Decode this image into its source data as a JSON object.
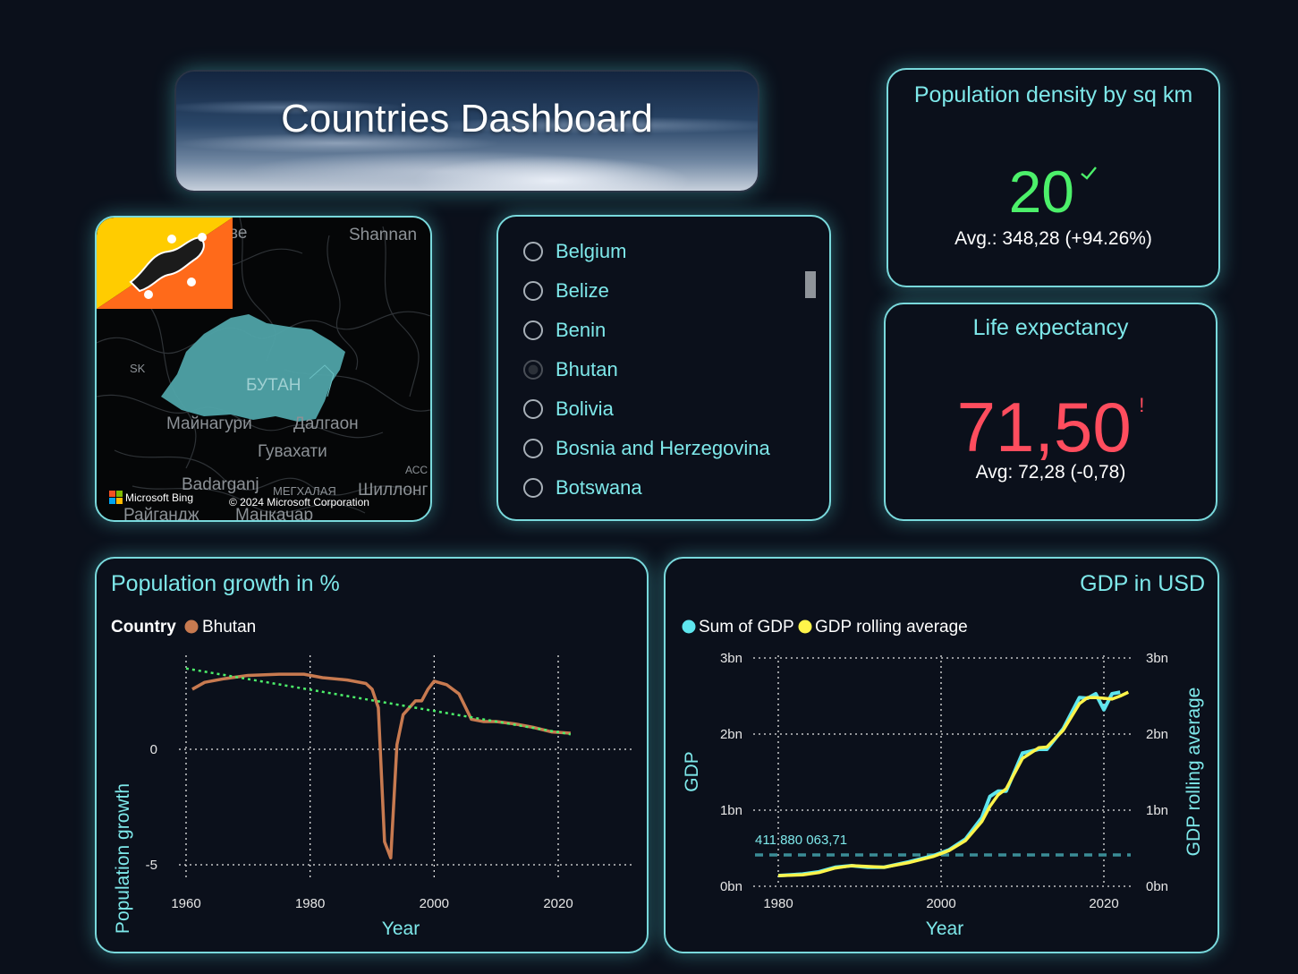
{
  "title": "Countries Dashboard",
  "map": {
    "labels": {
      "top_left": "ве",
      "top_right": "Shannan",
      "sk": "SK",
      "country": "БУТАН",
      "mainaguri": "Майнагури",
      "daltaon": "Далгаон",
      "guvahati": "Гувахати",
      "acc": "АСС",
      "badarganj": "Badarganj",
      "megxalaya": "МЕГХАЛАЯ",
      "shillong": "Шиллонг",
      "raiganj": "Райгандж",
      "mankachar": "Манкачар"
    },
    "bing": "Microsoft Bing",
    "copyright": "© 2024 Microsoft Corporation",
    "flag": "bhutan-flag",
    "colors": {
      "country_fill": "#4fa3a8",
      "flag_yellow": "#ffcc00",
      "flag_orange": "#ff6a1a"
    }
  },
  "slicer": {
    "items": [
      {
        "label": "Belgium",
        "selected": false
      },
      {
        "label": "Belize",
        "selected": false
      },
      {
        "label": "Benin",
        "selected": false
      },
      {
        "label": "Bhutan",
        "selected": true
      },
      {
        "label": "Bolivia",
        "selected": false
      },
      {
        "label": "Bosnia and Herzegovina",
        "selected": false
      },
      {
        "label": "Botswana",
        "selected": false
      }
    ]
  },
  "density": {
    "title": "Population density by sq km",
    "value": "20",
    "status_icon": "checkmark-icon",
    "avg": "Avg.: 348,28 (+94.26%)",
    "color": "#4cf06a"
  },
  "life": {
    "title": "Life expectancy",
    "value": "71,50",
    "status_icon": "!",
    "avg": "Avg: 72,28 (-0,78)",
    "color": "#ff4d5e"
  },
  "chart_data": [
    {
      "type": "line",
      "title": "Population growth in %",
      "legend_title": "Country",
      "xlabel": "Year",
      "ylabel": "Population growth",
      "x_ticks": [
        "1960",
        "1980",
        "2000",
        "2020"
      ],
      "y_ticks": [
        "0",
        "-5"
      ],
      "xlim": [
        1960,
        2022
      ],
      "ylim": [
        -5.5,
        3.5
      ],
      "grid": true,
      "series": [
        {
          "name": "Bhutan",
          "color": "#c87a50",
          "x": [
            1961,
            1963,
            1966,
            1970,
            1975,
            1979,
            1982,
            1986,
            1989,
            1990,
            1991,
            1992,
            1993,
            1994,
            1995,
            1997,
            1998,
            1999,
            2000,
            2002,
            2004,
            2006,
            2008,
            2010,
            2013,
            2016,
            2019,
            2022
          ],
          "y": [
            2.6,
            2.9,
            3.05,
            3.2,
            3.25,
            3.25,
            3.1,
            3.0,
            2.85,
            2.6,
            1.8,
            -4.0,
            -4.7,
            0.2,
            1.5,
            2.1,
            2.1,
            2.6,
            2.95,
            2.8,
            2.4,
            1.3,
            1.2,
            1.2,
            1.1,
            0.95,
            0.75,
            0.7
          ]
        },
        {
          "name": "trend",
          "type": "trendline",
          "color": "#4cf06a",
          "x": [
            1960,
            2022
          ],
          "y": [
            3.5,
            0.65
          ]
        }
      ]
    },
    {
      "type": "line",
      "title": "GDP in USD",
      "xlabel": "Year",
      "ylabel": "GDP",
      "y2label": "GDP rolling average",
      "x_ticks": [
        "1980",
        "2000",
        "2020"
      ],
      "y_ticks": [
        "0bn",
        "1bn",
        "2bn",
        "3bn"
      ],
      "y2_ticks": [
        "0bn",
        "1bn",
        "2bn",
        "3bn"
      ],
      "xlim": [
        1978,
        2024
      ],
      "ylim": [
        0,
        3
      ],
      "grid": true,
      "reference_line": {
        "value": 0.41188006371,
        "label": "411 880 063,71",
        "color": "#3b8c96"
      },
      "series": [
        {
          "name": "Sum of GDP",
          "color": "#5ee6ee",
          "x": [
            1980,
            1983,
            1985,
            1987,
            1989,
            1991,
            1993,
            1996,
            1999,
            2001,
            2003,
            2005,
            2006,
            2007,
            2008,
            2010,
            2012,
            2013,
            2015,
            2017,
            2018,
            2019,
            2020,
            2021,
            2022
          ],
          "y": [
            0.14,
            0.16,
            0.19,
            0.25,
            0.27,
            0.25,
            0.25,
            0.32,
            0.4,
            0.48,
            0.62,
            0.9,
            1.18,
            1.25,
            1.25,
            1.75,
            1.8,
            1.8,
            2.07,
            2.48,
            2.47,
            2.53,
            2.32,
            2.53,
            2.55
          ]
        },
        {
          "name": "GDP rolling average",
          "color": "#fff44a",
          "x": [
            1980,
            1983,
            1985,
            1987,
            1989,
            1991,
            1993,
            1996,
            1999,
            2001,
            2003,
            2005,
            2006,
            2007,
            2008,
            2010,
            2012,
            2013,
            2015,
            2017,
            2018,
            2019,
            2020,
            2021,
            2022,
            2023
          ],
          "y": [
            0.14,
            0.15,
            0.18,
            0.24,
            0.27,
            0.26,
            0.25,
            0.31,
            0.39,
            0.47,
            0.6,
            0.85,
            1.05,
            1.2,
            1.28,
            1.68,
            1.82,
            1.83,
            2.05,
            2.4,
            2.48,
            2.48,
            2.47,
            2.46,
            2.5,
            2.55
          ]
        }
      ]
    }
  ]
}
